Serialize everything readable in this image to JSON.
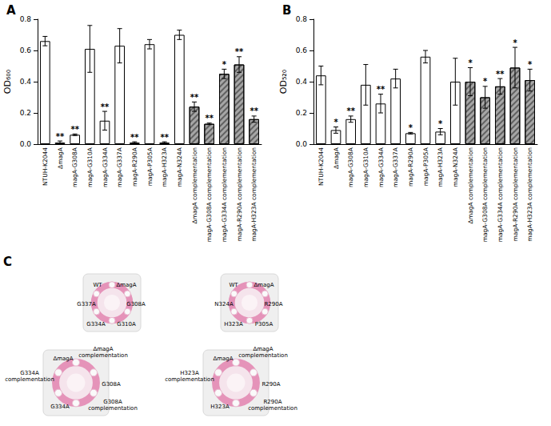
{
  "chart_data": [
    {
      "type": "bar",
      "title": "A",
      "y_label": "OD₆₀₀",
      "categories": [
        "NTUH-K2044",
        "ΔmagA",
        "magA-G308A",
        "magA-G310A",
        "magA-G334A",
        "magA-G337A",
        "magA-R290A",
        "magA-P305A",
        "magA-H323A",
        "magA-N324A",
        "ΔmagA complementation",
        "magA-G308A complementation",
        "magA-G334A complementation",
        "magA-R290A complementation",
        "magA-H323A complementation"
      ],
      "values": [
        0.66,
        0.01,
        0.06,
        0.61,
        0.15,
        0.63,
        0.01,
        0.64,
        0.01,
        0.7,
        0.24,
        0.13,
        0.45,
        0.51,
        0.16
      ],
      "errors": [
        0.03,
        0.01,
        0.005,
        0.15,
        0.06,
        0.11,
        0.005,
        0.03,
        0.005,
        0.03,
        0.03,
        0.005,
        0.03,
        0.05,
        0.02
      ],
      "annotations": [
        null,
        "**",
        "**",
        null,
        "**",
        null,
        "**",
        null,
        "**",
        null,
        "**",
        "**",
        "*",
        "**",
        "**"
      ],
      "colors": [
        "#ffffff",
        "#ffffff",
        "#ffffff",
        "#ffffff",
        "#ffffff",
        "#ffffff",
        "#ffffff",
        "#ffffff",
        "#ffffff",
        "#ffffff",
        "#a6a6a6",
        "#a6a6a6",
        "#a6a6a6",
        "#a6a6a6",
        "#a6a6a6"
      ],
      "ylim": [
        0,
        0.8
      ],
      "yticks": [
        {
          "value": 0,
          "label": "0.0"
        },
        {
          "value": 0.2,
          "label": "0.2"
        },
        {
          "value": 0.4,
          "label": "0.4"
        },
        {
          "value": 0.6,
          "label": "0.6"
        },
        {
          "value": 0.8,
          "label": "0.8"
        }
      ],
      "grid": false
    },
    {
      "type": "bar",
      "title": "B",
      "y_label": "OD₅₂₀",
      "categories": [
        "NTUH-K2044",
        "ΔmagA",
        "magA-G308A",
        "magA-G310A",
        "magA-G334A",
        "magA-G337A",
        "magA-R290A",
        "magA-P305A",
        "magA-H323A",
        "magA-N324A",
        "ΔmagA complementation",
        "magA-G308A complementation",
        "magA-G334A complementation",
        "magA-R290A complementation",
        "magA-H323A complementation"
      ],
      "values": [
        0.44,
        0.09,
        0.16,
        0.38,
        0.26,
        0.42,
        0.07,
        0.56,
        0.08,
        0.4,
        0.4,
        0.3,
        0.37,
        0.49,
        0.41
      ],
      "errors": [
        0.06,
        0.02,
        0.02,
        0.13,
        0.06,
        0.06,
        0.005,
        0.04,
        0.02,
        0.15,
        0.09,
        0.07,
        0.05,
        0.13,
        0.07
      ],
      "annotations": [
        null,
        "*",
        "**",
        null,
        "**",
        null,
        "*",
        null,
        "*",
        null,
        "*",
        "*",
        "**",
        "*",
        "*"
      ],
      "colors": [
        "#ffffff",
        "#ffffff",
        "#ffffff",
        "#ffffff",
        "#ffffff",
        "#ffffff",
        "#ffffff",
        "#ffffff",
        "#ffffff",
        "#ffffff",
        "#a6a6a6",
        "#a6a6a6",
        "#a6a6a6",
        "#a6a6a6",
        "#a6a6a6"
      ],
      "ylim": [
        0,
        0.8
      ],
      "yticks": [
        {
          "value": 0,
          "label": "0.0"
        },
        {
          "value": 0.2,
          "label": "0.2"
        },
        {
          "value": 0.4,
          "label": "0.4"
        },
        {
          "value": 0.6,
          "label": "0.6"
        },
        {
          "value": 0.8,
          "label": "0.8"
        }
      ],
      "grid": false
    }
  ],
  "panel_c": {
    "title": "C",
    "plates": [
      {
        "labels": [
          "WT",
          "ΔmagA",
          "G337A",
          "G308A",
          "G334A",
          "G310A"
        ]
      },
      {
        "labels": [
          "WT",
          "ΔmagA",
          "N324A",
          "R290A",
          "H323A",
          "P305A"
        ]
      },
      {
        "labels": [
          "ΔmagA",
          "ΔmagA complementation",
          "G334A complementation",
          "G308A",
          "G334A",
          "G308A complementation"
        ]
      },
      {
        "labels": [
          "ΔmagA",
          "ΔmagA complementation",
          "H323A complementation",
          "R290A",
          "H323A",
          "R290A complementation"
        ]
      }
    ]
  }
}
